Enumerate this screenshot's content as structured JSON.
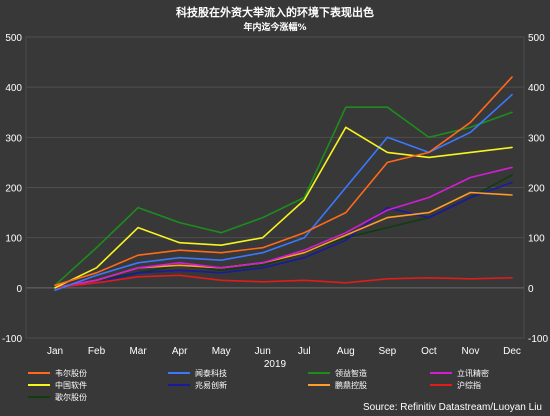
{
  "chart_data": {
    "type": "line",
    "title": "科技股在外资大举流入的环境下表现出色",
    "subtitle": "年内迄今涨幅%",
    "xlabel": "2019",
    "ylim": [
      -100,
      500
    ],
    "yticks": [
      "-100",
      "0",
      "100",
      "200",
      "300",
      "400",
      "500"
    ],
    "y_axis_sides": "left and right",
    "grid": true,
    "legend_position": "bottom",
    "source": "Source: Refinitiv Datastream/Luoyan Liu",
    "x": [
      "Jan",
      "Feb",
      "Mar",
      "Apr",
      "May",
      "Jun",
      "Jul",
      "Aug",
      "Sep",
      "Oct",
      "Nov",
      "Dec"
    ],
    "series": [
      {
        "name": "韦尔股份",
        "color": "#ff6a1a",
        "values": [
          5,
          30,
          65,
          75,
          70,
          80,
          110,
          150,
          250,
          270,
          330,
          420
        ]
      },
      {
        "name": "中国软件",
        "color": "#f7f51e",
        "values": [
          0,
          40,
          120,
          90,
          85,
          100,
          175,
          320,
          270,
          260,
          270,
          280
        ]
      },
      {
        "name": "闻泰科技",
        "color": "#3b78ff",
        "values": [
          -5,
          25,
          50,
          60,
          55,
          70,
          100,
          200,
          300,
          270,
          310,
          385
        ]
      },
      {
        "name": "兆易创新",
        "color": "#1a1a9e",
        "values": [
          0,
          10,
          30,
          35,
          30,
          40,
          60,
          95,
          160,
          140,
          180,
          210
        ]
      },
      {
        "name": "领益智造",
        "color": "#1d8c1d",
        "values": [
          5,
          80,
          160,
          130,
          110,
          140,
          180,
          360,
          360,
          300,
          320,
          350
        ]
      },
      {
        "name": "鹏鼎控股",
        "color": "#ff9c2a",
        "values": [
          0,
          15,
          40,
          45,
          40,
          50,
          70,
          105,
          140,
          150,
          190,
          185
        ]
      },
      {
        "name": "立讯精密",
        "color": "#d21ed2",
        "values": [
          0,
          15,
          40,
          50,
          40,
          50,
          75,
          110,
          155,
          180,
          220,
          240
        ]
      },
      {
        "name": "沪综指",
        "color": "#e21b1b",
        "values": [
          0,
          10,
          22,
          25,
          15,
          12,
          15,
          10,
          18,
          20,
          18,
          20
        ]
      },
      {
        "name": "歌尔股份",
        "color": "#0f3d0f",
        "values": [
          0,
          15,
          30,
          45,
          35,
          45,
          70,
          100,
          120,
          140,
          180,
          225
        ]
      }
    ]
  }
}
